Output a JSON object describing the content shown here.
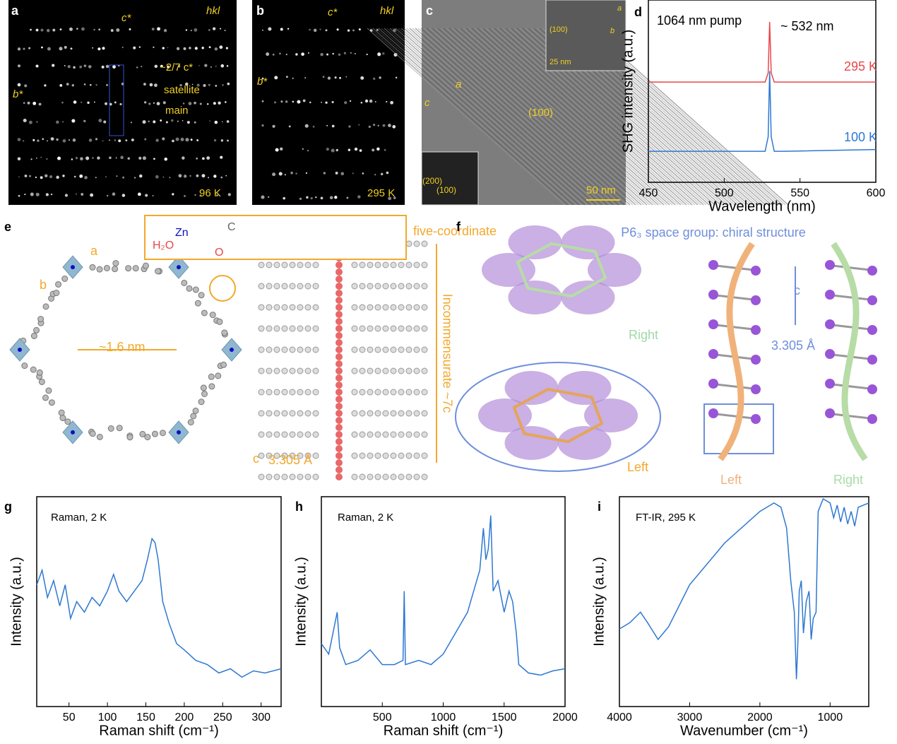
{
  "panels": {
    "a": {
      "label": "a",
      "hkl": "hkl",
      "c_star": "c*",
      "b_star": "b*",
      "modulation": "~2/7 c*",
      "satellite": "satellite",
      "main": "main",
      "temperature": "96 K"
    },
    "b": {
      "label": "b",
      "hkl": "hkl",
      "c_star": "c*",
      "b_star": "b*",
      "temperature": "295 K"
    },
    "c": {
      "label": "c",
      "inset_plane": "(100)",
      "inset_scale": "25 nm",
      "inset_a": "a",
      "inset_b": "b",
      "plane": "(100)",
      "axis_a": "a",
      "axis_c": "c",
      "fft_200": "(200)",
      "fft_100": "(100)",
      "scale": "50 nm"
    },
    "e": {
      "label": "e",
      "axis_a": "a",
      "axis_b": "b",
      "coordination": "five-coordinate",
      "water": "H₂O",
      "zinc": "Zn",
      "carbon": "C",
      "oxygen": "O",
      "pore": "~1.6 nm",
      "period": "Incommensurate ~7c",
      "axis_c": "c",
      "spacing": "3.305 Å"
    },
    "f": {
      "label": "f",
      "space_group": "P6₃ space group: chiral structure",
      "ring_right": "Right",
      "ring_left": "Left",
      "axis_c": "c",
      "spacing": "3.305 Å",
      "helix_left": "Left",
      "helix_right": "Right"
    }
  },
  "chart_data": [
    {
      "type": "line",
      "panel": "d",
      "xlabel": "Wavelength (nm)",
      "ylabel": "SHG intensity (a.u.)",
      "xlim": [
        450,
        600
      ],
      "ylim": [
        0,
        1
      ],
      "xticks": [
        450,
        500,
        550,
        600
      ],
      "annotations": [
        "1064 nm pump",
        "~ 532 nm"
      ],
      "x": [
        450,
        520,
        527,
        529,
        530,
        531,
        533,
        540,
        600
      ],
      "series": [
        {
          "name": "295 K",
          "color": "#e8474a",
          "values": [
            0.55,
            0.55,
            0.55,
            0.6,
            0.88,
            0.6,
            0.55,
            0.55,
            0.55
          ]
        },
        {
          "name": "100 K",
          "color": "#2e78d2",
          "values": [
            0.17,
            0.17,
            0.17,
            0.25,
            0.61,
            0.25,
            0.17,
            0.17,
            0.18
          ]
        }
      ]
    },
    {
      "type": "line",
      "panel": "g",
      "xlabel": "Raman shift (cm⁻¹)",
      "ylabel": "Intensity (a.u.)",
      "xlim": [
        8,
        326
      ],
      "ylim": [
        0,
        1
      ],
      "xticks": [
        50,
        100,
        150,
        200,
        250,
        300
      ],
      "annotations": [
        "Raman, 2 K"
      ],
      "color": "#2e78d2",
      "x": [
        8,
        15,
        22,
        30,
        38,
        45,
        52,
        60,
        70,
        80,
        90,
        100,
        108,
        115,
        125,
        135,
        145,
        152,
        158,
        162,
        166,
        172,
        180,
        190,
        200,
        215,
        230,
        245,
        260,
        275,
        290,
        305,
        326
      ],
      "values": [
        0.58,
        0.65,
        0.52,
        0.6,
        0.48,
        0.58,
        0.42,
        0.5,
        0.45,
        0.52,
        0.48,
        0.55,
        0.63,
        0.55,
        0.5,
        0.55,
        0.6,
        0.7,
        0.8,
        0.78,
        0.7,
        0.5,
        0.4,
        0.3,
        0.27,
        0.22,
        0.2,
        0.16,
        0.18,
        0.14,
        0.17,
        0.16,
        0.18
      ]
    },
    {
      "type": "line",
      "panel": "h",
      "xlabel": "Raman shift (cm⁻¹)",
      "ylabel": "Intensity (a.u.)",
      "xlim": [
        0,
        2000
      ],
      "ylim": [
        0,
        1
      ],
      "xticks": [
        500,
        1000,
        1500,
        2000
      ],
      "annotations": [
        "Raman, 2 K"
      ],
      "color": "#2e78d2",
      "x": [
        0,
        60,
        130,
        150,
        200,
        300,
        400,
        500,
        600,
        670,
        680,
        690,
        800,
        900,
        1000,
        1100,
        1200,
        1250,
        1300,
        1330,
        1350,
        1370,
        1390,
        1410,
        1450,
        1500,
        1540,
        1570,
        1600,
        1620,
        1700,
        1800,
        1900,
        2000
      ],
      "values": [
        0.3,
        0.25,
        0.45,
        0.28,
        0.2,
        0.22,
        0.27,
        0.2,
        0.2,
        0.22,
        0.55,
        0.2,
        0.22,
        0.2,
        0.25,
        0.35,
        0.45,
        0.55,
        0.65,
        0.85,
        0.7,
        0.75,
        0.91,
        0.55,
        0.6,
        0.45,
        0.55,
        0.5,
        0.35,
        0.2,
        0.16,
        0.15,
        0.17,
        0.18
      ]
    },
    {
      "type": "line",
      "panel": "i",
      "xlabel": "Wavenumber (cm⁻¹)",
      "ylabel": "Intensity (a.u.)",
      "xlim": [
        4000,
        450
      ],
      "ylim": [
        0,
        1
      ],
      "xticks": [
        4000,
        3000,
        2000,
        1000
      ],
      "annotations": [
        "FT-IR, 295 K"
      ],
      "color": "#2e78d2",
      "x": [
        4000,
        3850,
        3700,
        3600,
        3450,
        3300,
        3000,
        2500,
        2000,
        1800,
        1700,
        1620,
        1560,
        1510,
        1480,
        1460,
        1440,
        1410,
        1380,
        1340,
        1300,
        1270,
        1240,
        1200,
        1170,
        1100,
        1000,
        950,
        900,
        850,
        800,
        750,
        700,
        650,
        600,
        450
      ],
      "values": [
        0.37,
        0.4,
        0.45,
        0.4,
        0.32,
        0.38,
        0.58,
        0.78,
        0.93,
        0.97,
        0.95,
        0.85,
        0.6,
        0.45,
        0.13,
        0.3,
        0.55,
        0.6,
        0.35,
        0.5,
        0.55,
        0.32,
        0.42,
        0.45,
        0.93,
        0.99,
        0.97,
        0.9,
        0.96,
        0.88,
        0.95,
        0.87,
        0.93,
        0.86,
        0.95,
        0.97
      ]
    }
  ]
}
